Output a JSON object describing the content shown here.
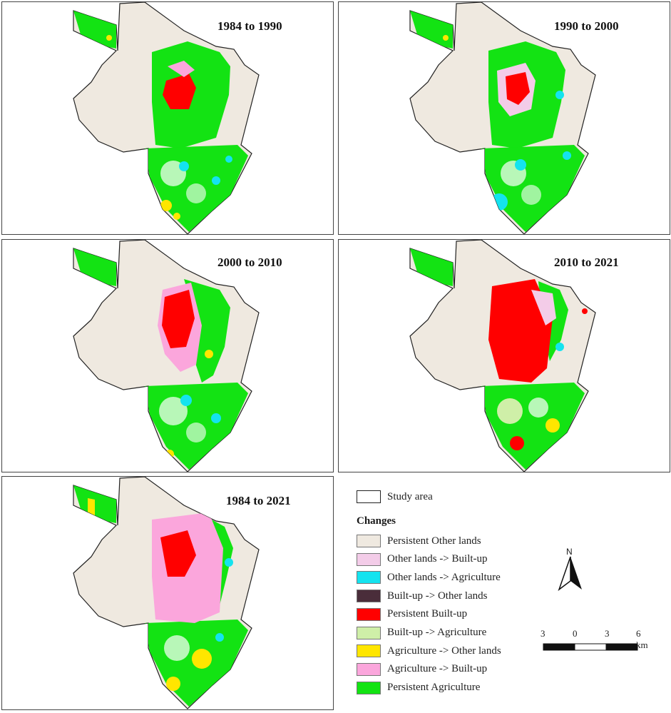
{
  "panels": [
    {
      "title": "1984 to 1990"
    },
    {
      "title": "1990 to 2000"
    },
    {
      "title": "2000 to 2010"
    },
    {
      "title": "2010 to 2021"
    },
    {
      "title": "1984 to 2021"
    }
  ],
  "legend": {
    "study_area": "Study area",
    "heading": "Changes",
    "items": [
      {
        "label": "Persistent Other lands",
        "color": "#efe9e0"
      },
      {
        "label": "Other lands -> Built-up",
        "color": "#f3cce8"
      },
      {
        "label": "Other lands -> Agriculture",
        "color": "#14e3ef"
      },
      {
        "label": "Built-up -> Other lands",
        "color": "#4a2d3a"
      },
      {
        "label": "Persistent Built-up",
        "color": "#ff0000"
      },
      {
        "label": "Built-up -> Agriculture",
        "color": "#cfefa8"
      },
      {
        "label": "Agriculture -> Other lands",
        "color": "#ffe600"
      },
      {
        "label": "Agriculture -> Built-up",
        "color": "#fba6dc"
      },
      {
        "label": "Persistent Agriculture",
        "color": "#13e313"
      }
    ]
  },
  "north_arrow": {
    "label": "N"
  },
  "scale_bar": {
    "ticks": [
      "3",
      "0",
      "3",
      "6 km"
    ]
  }
}
